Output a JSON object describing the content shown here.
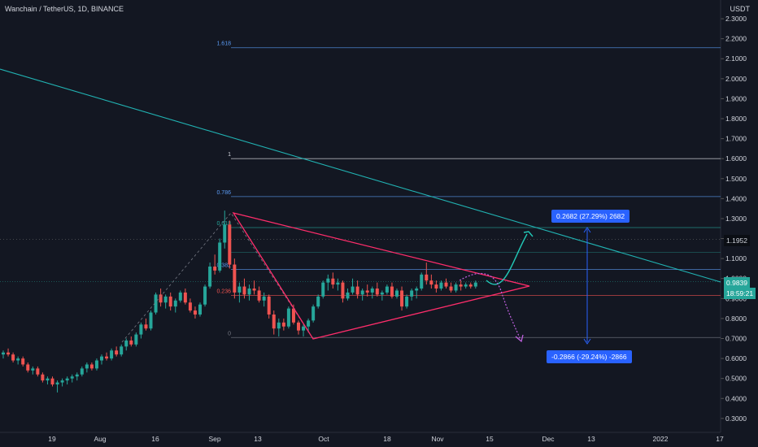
{
  "header": {
    "title": "Wanchain / TetherUS, 1D, BINANCE",
    "currency": "USDT"
  },
  "price_labels": {
    "price": "1.1952",
    "last": "0.9839",
    "countdown": "18:59:21"
  },
  "measures": {
    "up": "0.2682 (27.29%) 2682",
    "down": "-0.2866 (-29.24%) -2866"
  },
  "fib_labels": [
    "1.618",
    "1",
    "0.786",
    "0.618",
    "0.382",
    "0.236",
    "0"
  ],
  "colors": {
    "bg": "#131722",
    "up": "#26a69a",
    "down": "#ef5350",
    "triangle": "#ff2d6b",
    "trend": "#21b3b3",
    "fib": "#5b9cf6",
    "arrow_up": "#22c9b8",
    "arrow_down": "#c060e0"
  },
  "chart_data": {
    "type": "candlestick",
    "title": "Wanchain / TetherUS, 1D, BINANCE",
    "y_ticks": [
      "2.3000",
      "2.2000",
      "2.1000",
      "2.0000",
      "1.9000",
      "1.8000",
      "1.7000",
      "1.6000",
      "1.5000",
      "1.4000",
      "1.3000",
      "1.2000",
      "1.1000",
      "1.0000",
      "0.9000",
      "0.8000",
      "0.7000",
      "0.6000",
      "0.5000",
      "0.4000",
      "0.3000"
    ],
    "x_ticks": [
      "19",
      "Aug",
      "16",
      "Sep",
      "13",
      "Oct",
      "18",
      "Nov",
      "15",
      "Dec",
      "13",
      "2022",
      "17"
    ],
    "ylim": [
      0.275,
      2.345
    ],
    "fib_levels": [
      {
        "label": "1.618",
        "price": 2.155
      },
      {
        "label": "1",
        "price": 1.6
      },
      {
        "label": "0.786",
        "price": 1.41
      },
      {
        "label": "0.618",
        "price": 1.255
      },
      {
        "label": "0.382",
        "price": 1.045
      },
      {
        "label": "0.236",
        "price": 0.915
      },
      {
        "label": "0",
        "price": 0.705
      }
    ],
    "last_price": 0.9839,
    "marked_price": 1.1952,
    "candles": [
      [
        0.62,
        0.64,
        0.6,
        0.63
      ],
      [
        0.63,
        0.65,
        0.61,
        0.62
      ],
      [
        0.62,
        0.63,
        0.58,
        0.59
      ],
      [
        0.59,
        0.61,
        0.57,
        0.6
      ],
      [
        0.6,
        0.61,
        0.56,
        0.57
      ],
      [
        0.57,
        0.58,
        0.53,
        0.54
      ],
      [
        0.54,
        0.56,
        0.52,
        0.55
      ],
      [
        0.55,
        0.56,
        0.51,
        0.52
      ],
      [
        0.52,
        0.53,
        0.48,
        0.49
      ],
      [
        0.49,
        0.51,
        0.47,
        0.5
      ],
      [
        0.5,
        0.51,
        0.46,
        0.47
      ],
      [
        0.47,
        0.49,
        0.43,
        0.48
      ],
      [
        0.48,
        0.5,
        0.46,
        0.49
      ],
      [
        0.49,
        0.51,
        0.47,
        0.5
      ],
      [
        0.5,
        0.52,
        0.48,
        0.51
      ],
      [
        0.51,
        0.53,
        0.49,
        0.52
      ],
      [
        0.52,
        0.56,
        0.51,
        0.55
      ],
      [
        0.55,
        0.58,
        0.53,
        0.57
      ],
      [
        0.57,
        0.58,
        0.54,
        0.55
      ],
      [
        0.55,
        0.6,
        0.54,
        0.59
      ],
      [
        0.59,
        0.62,
        0.57,
        0.61
      ],
      [
        0.61,
        0.63,
        0.59,
        0.6
      ],
      [
        0.6,
        0.65,
        0.59,
        0.64
      ],
      [
        0.64,
        0.66,
        0.61,
        0.62
      ],
      [
        0.62,
        0.67,
        0.61,
        0.66
      ],
      [
        0.66,
        0.7,
        0.64,
        0.69
      ],
      [
        0.69,
        0.71,
        0.66,
        0.67
      ],
      [
        0.67,
        0.73,
        0.66,
        0.72
      ],
      [
        0.72,
        0.78,
        0.7,
        0.77
      ],
      [
        0.77,
        0.8,
        0.74,
        0.75
      ],
      [
        0.75,
        0.84,
        0.74,
        0.83
      ],
      [
        0.83,
        0.93,
        0.82,
        0.92
      ],
      [
        0.92,
        0.95,
        0.86,
        0.88
      ],
      [
        0.88,
        0.92,
        0.85,
        0.91
      ],
      [
        0.91,
        0.93,
        0.84,
        0.86
      ],
      [
        0.86,
        0.9,
        0.83,
        0.89
      ],
      [
        0.89,
        0.94,
        0.88,
        0.93
      ],
      [
        0.93,
        0.95,
        0.87,
        0.88
      ],
      [
        0.88,
        0.9,
        0.83,
        0.84
      ],
      [
        0.84,
        0.86,
        0.8,
        0.82
      ],
      [
        0.82,
        0.88,
        0.81,
        0.87
      ],
      [
        0.87,
        0.97,
        0.86,
        0.96
      ],
      [
        0.96,
        1.08,
        0.95,
        1.06
      ],
      [
        1.06,
        1.12,
        1.02,
        1.04
      ],
      [
        1.04,
        1.2,
        1.03,
        1.18
      ],
      [
        1.18,
        1.34,
        1.15,
        1.27
      ],
      [
        1.27,
        1.29,
        1.05,
        1.07
      ],
      [
        1.07,
        1.1,
        0.9,
        0.93
      ],
      [
        0.93,
        0.98,
        0.88,
        0.96
      ],
      [
        0.96,
        1.0,
        0.9,
        0.92
      ],
      [
        0.92,
        0.97,
        0.89,
        0.95
      ],
      [
        0.95,
        0.99,
        0.92,
        0.94
      ],
      [
        0.94,
        0.96,
        0.88,
        0.89
      ],
      [
        0.89,
        0.93,
        0.86,
        0.91
      ],
      [
        0.91,
        0.92,
        0.8,
        0.82
      ],
      [
        0.82,
        0.84,
        0.72,
        0.75
      ],
      [
        0.75,
        0.8,
        0.71,
        0.78
      ],
      [
        0.78,
        0.8,
        0.74,
        0.76
      ],
      [
        0.76,
        0.86,
        0.75,
        0.85
      ],
      [
        0.85,
        0.87,
        0.77,
        0.78
      ],
      [
        0.78,
        0.79,
        0.72,
        0.74
      ],
      [
        0.74,
        0.77,
        0.71,
        0.76
      ],
      [
        0.76,
        0.8,
        0.73,
        0.79
      ],
      [
        0.79,
        0.87,
        0.78,
        0.86
      ],
      [
        0.86,
        0.92,
        0.85,
        0.91
      ],
      [
        0.91,
        0.99,
        0.9,
        0.98
      ],
      [
        0.98,
        1.02,
        0.94,
        1.0
      ],
      [
        1.0,
        1.03,
        0.95,
        0.97
      ],
      [
        0.97,
        1.0,
        0.94,
        0.98
      ],
      [
        0.98,
        0.99,
        0.88,
        0.9
      ],
      [
        0.9,
        0.95,
        0.89,
        0.93
      ],
      [
        0.93,
        1.0,
        0.92,
        0.96
      ],
      [
        0.96,
        0.99,
        0.9,
        0.92
      ],
      [
        0.92,
        0.95,
        0.89,
        0.94
      ],
      [
        0.94,
        0.97,
        0.91,
        0.93
      ],
      [
        0.93,
        0.96,
        0.9,
        0.95
      ],
      [
        0.95,
        0.98,
        0.91,
        0.92
      ],
      [
        0.92,
        0.94,
        0.89,
        0.93
      ],
      [
        0.93,
        0.97,
        0.92,
        0.96
      ],
      [
        0.96,
        0.98,
        0.9,
        0.91
      ],
      [
        0.91,
        0.95,
        0.9,
        0.94
      ],
      [
        0.94,
        0.96,
        0.84,
        0.86
      ],
      [
        0.86,
        0.92,
        0.85,
        0.91
      ],
      [
        0.91,
        0.95,
        0.89,
        0.94
      ],
      [
        0.94,
        0.96,
        0.9,
        0.95
      ],
      [
        0.95,
        1.03,
        0.94,
        1.02
      ],
      [
        1.02,
        1.08,
        0.97,
        0.99
      ],
      [
        0.99,
        1.02,
        0.95,
        0.97
      ],
      [
        0.97,
        0.99,
        0.93,
        0.95
      ],
      [
        0.95,
        0.99,
        0.94,
        0.98
      ],
      [
        0.98,
        1.0,
        0.95,
        0.96
      ],
      [
        0.96,
        0.98,
        0.93,
        0.94
      ],
      [
        0.94,
        0.98,
        0.93,
        0.97
      ],
      [
        0.97,
        0.99,
        0.94,
        0.96
      ],
      [
        0.96,
        0.98,
        0.95,
        0.97
      ],
      [
        0.97,
        0.98,
        0.95,
        0.96
      ],
      [
        0.96,
        0.99,
        0.95,
        0.98
      ]
    ]
  }
}
